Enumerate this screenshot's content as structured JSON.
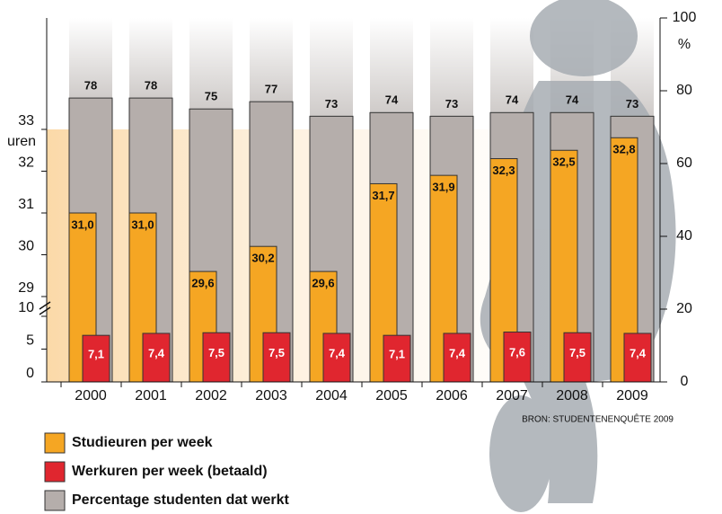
{
  "chart_data": {
    "type": "bar",
    "categories": [
      "2000",
      "2001",
      "2002",
      "2003",
      "2004",
      "2005",
      "2006",
      "2007",
      "2008",
      "2009"
    ],
    "y_segments": [
      {
        "ylim": [
          0,
          10
        ],
        "yticks": [
          0,
          5,
          10
        ]
      },
      {
        "ylim": [
          29,
          33
        ],
        "yticks": [
          29,
          30,
          31,
          32,
          33
        ],
        "label": "uren"
      }
    ],
    "y2lim": [
      0,
      100
    ],
    "y2ticks": [
      0,
      20,
      40,
      60,
      80,
      100
    ],
    "y2label": "%",
    "series": [
      {
        "name": "Studieuren per week",
        "color": "#f5a623",
        "segment": 1,
        "values": [
          31.0,
          31.0,
          29.6,
          30.2,
          29.6,
          31.7,
          31.9,
          32.3,
          32.5,
          32.8
        ],
        "value_labels": [
          "31,0",
          "31,0",
          "29,6",
          "30,2",
          "29,6",
          "31,7",
          "31,9",
          "32,3",
          "32,5",
          "32,8"
        ]
      },
      {
        "name": "Werkuren per week (betaald)",
        "color": "#e0262f",
        "segment": 0,
        "values": [
          7.1,
          7.4,
          7.5,
          7.5,
          7.4,
          7.1,
          7.4,
          7.6,
          7.5,
          7.4
        ],
        "value_labels": [
          "7,1",
          "7,4",
          "7,5",
          "7,5",
          "7,4",
          "7,1",
          "7,4",
          "7,6",
          "7,5",
          "7,4"
        ]
      },
      {
        "name": "Percentage studenten dat werkt",
        "color": "#b5aeab",
        "axis": "y2",
        "values": [
          78,
          78,
          75,
          77,
          73,
          74,
          73,
          74,
          74,
          73
        ]
      }
    ],
    "source": "BRON: STUDENTENENQUÊTE 2009"
  }
}
